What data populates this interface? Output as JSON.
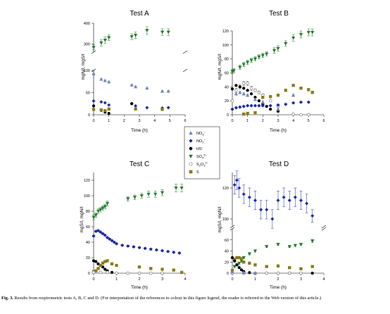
{
  "colors": {
    "nitrate": "#6f86b5",
    "nitrite": "#1b2aa8",
    "sulfide": "#000000",
    "sulfate": "#1d7a25",
    "thiosulfate": "#ffffff",
    "sulfur": "#8a7a1a"
  },
  "legend": {
    "items": [
      {
        "key": "nitrate",
        "marker": "triangle-up",
        "label": "NO",
        "sub": "3",
        "sup": "−"
      },
      {
        "key": "nitrite",
        "marker": "diamond",
        "label": "NO",
        "sub": "2",
        "sup": "−"
      },
      {
        "key": "sulfide",
        "marker": "circle",
        "label": "HS",
        "sub": "",
        "sup": "−"
      },
      {
        "key": "sulfate",
        "marker": "triangle-down",
        "label": "SO",
        "sub": "4",
        "sup": "2−"
      },
      {
        "key": "thiosulfate",
        "marker": "circle-open",
        "label": "S",
        "sub": "2",
        "mid": "O",
        "sub2": "3",
        "sup": "2−"
      },
      {
        "key": "sulfur",
        "marker": "square",
        "label": "S",
        "sub": "",
        "sup": ""
      }
    ]
  },
  "caption": {
    "label": "Fig. 3.",
    "text": "Results from respirometric tests A, B, C and D. (For interpretation of the references to colour in this figure legend, the reader is referred to the Web version of this article.)"
  },
  "chart_data": [
    {
      "type": "scatter",
      "title": "Test A",
      "xlabel": "Time (h)",
      "ylabel": "mgN/l, mgS/l",
      "xlim": [
        0,
        6
      ],
      "xticks": [
        0,
        1,
        2,
        3,
        4,
        5,
        6
      ],
      "broken_axis": true,
      "upper_ylim": [
        260,
        400
      ],
      "upper_yticks": [
        300,
        400
      ],
      "lower_ylim": [
        0,
        100
      ],
      "lower_yticks": [
        0,
        50,
        100
      ],
      "series": [
        {
          "key": "sulfate",
          "x": [
            0,
            0.5,
            0.75,
            1,
            2.5,
            2.75,
            3.5,
            4.5,
            4.9
          ],
          "y": [
            283,
            305,
            318,
            330,
            335,
            342,
            365,
            357,
            357
          ],
          "err": [
            12,
            15,
            15,
            14,
            14,
            16,
            18,
            16,
            16
          ]
        },
        {
          "key": "nitrate",
          "x": [
            0,
            0.5,
            0.75,
            1,
            2.5,
            2.75,
            3.5,
            4.5,
            4.9
          ],
          "y": [
            93,
            80,
            77,
            74,
            67,
            63,
            60,
            53,
            53
          ],
          "err": [
            4,
            2,
            2,
            2,
            2,
            2,
            2,
            2,
            2
          ]
        },
        {
          "key": "nitrite",
          "x": [
            0,
            0.5,
            0.75,
            1,
            2.5,
            2.75,
            3.5,
            4.5,
            4.9
          ],
          "y": [
            31,
            29,
            27,
            22,
            25,
            20,
            16,
            15,
            16
          ],
          "err": [
            0,
            0,
            0,
            0,
            0,
            0,
            0,
            0,
            0
          ]
        },
        {
          "key": "sulfide",
          "x": [
            0,
            0.5,
            0.75,
            1,
            2.5
          ],
          "y": [
            20,
            10,
            6,
            3,
            25
          ],
          "err": [
            0,
            0,
            0,
            0,
            0
          ]
        },
        {
          "key": "sulfur",
          "x": [
            0,
            0.5,
            0.75,
            1,
            2.75,
            4.5
          ],
          "y": [
            12,
            11,
            9,
            13,
            13,
            12
          ],
          "err": [
            0,
            0,
            0,
            0,
            0,
            0
          ]
        }
      ]
    },
    {
      "type": "scatter",
      "title": "Test B",
      "xlabel": "Time (h)",
      "ylabel": "mgN/l, mgS/l",
      "xlim": [
        0,
        6
      ],
      "xticks": [
        0,
        1,
        2,
        3,
        4,
        5,
        6
      ],
      "ylim": [
        0,
        120
      ],
      "yticks": [
        0,
        20,
        40,
        60,
        80,
        100,
        120
      ],
      "series": [
        {
          "key": "sulfate",
          "x": [
            0,
            0.1,
            0.5,
            0.75,
            1,
            1.25,
            1.5,
            1.75,
            2,
            2.25,
            2.75,
            3,
            3.5,
            4,
            4.5,
            5,
            5.25
          ],
          "y": [
            62,
            63,
            68,
            72,
            75,
            78,
            80,
            83,
            85,
            87,
            92,
            95,
            102,
            110,
            115,
            118,
            118
          ],
          "err": [
            3,
            3,
            3,
            3,
            3,
            3,
            3,
            3,
            3,
            3,
            4,
            4,
            4,
            5,
            5,
            5,
            5
          ]
        },
        {
          "key": "thiosulfate",
          "x": [
            0,
            0.25,
            0.5,
            0.75,
            1,
            1.25,
            1.5,
            1.75,
            2,
            2.5,
            3,
            4,
            4.5,
            5
          ],
          "y": [
            20,
            35,
            40,
            45,
            45,
            38,
            35,
            32,
            28,
            20,
            12,
            1,
            0,
            0
          ],
          "err": [
            0,
            3,
            3,
            3,
            3,
            3,
            2,
            2,
            2,
            0,
            0,
            0,
            0,
            0
          ]
        },
        {
          "key": "sulfide",
          "x": [
            0,
            0.25,
            0.5,
            0.75,
            1,
            1.25,
            1.5,
            1.75,
            2,
            2.25,
            2.5,
            3
          ],
          "y": [
            37,
            42,
            40,
            38,
            35,
            30,
            25,
            20,
            15,
            12,
            8,
            5
          ],
          "err": [
            0,
            0,
            0,
            0,
            0,
            0,
            0,
            0,
            0,
            0,
            0,
            0
          ]
        },
        {
          "key": "nitrate",
          "x": [
            0.25,
            0.5,
            0.75,
            1,
            1.5,
            2,
            3,
            4
          ],
          "y": [
            30,
            32,
            30,
            28,
            22,
            18,
            8,
            28
          ],
          "err": [
            2,
            2,
            2,
            2,
            2,
            2,
            2,
            2
          ]
        },
        {
          "key": "nitrite",
          "x": [
            0,
            0.25,
            0.5,
            0.75,
            1,
            1.25,
            1.5,
            1.75,
            2,
            2.5,
            3,
            3.5,
            4,
            4.5,
            5
          ],
          "y": [
            8,
            10,
            11,
            12,
            13,
            13,
            13,
            13,
            13,
            13,
            14,
            15,
            17,
            18,
            18
          ],
          "err": [
            1,
            1,
            1,
            1,
            1,
            1,
            1,
            1,
            1,
            1,
            1,
            1,
            1,
            1,
            1
          ]
        },
        {
          "key": "sulfur",
          "x": [
            0.75,
            1,
            1.5,
            2,
            2.5,
            3,
            3.5,
            4,
            4.5,
            5,
            5.25
          ],
          "y": [
            1,
            2,
            3,
            25,
            26,
            28,
            35,
            42,
            38,
            36,
            32
          ],
          "err": [
            0,
            0,
            0,
            0,
            0,
            0,
            0,
            0,
            0,
            0,
            0
          ]
        }
      ]
    },
    {
      "type": "scatter",
      "title": "Test C",
      "xlabel": "Time (h)",
      "ylabel": "mgS/l, mgN/l",
      "xlim": [
        0,
        4
      ],
      "xticks": [
        0,
        1,
        2,
        3,
        4
      ],
      "ylim": [
        0,
        130
      ],
      "yticks": [
        0,
        20,
        40,
        60,
        80,
        100,
        120
      ],
      "series": [
        {
          "key": "sulfate",
          "x": [
            0,
            0.1,
            0.2,
            0.3,
            0.4,
            0.5,
            0.6,
            1.5,
            1.8,
            2.1,
            2.4,
            2.7,
            3,
            3.6,
            3.85
          ],
          "y": [
            72,
            75,
            80,
            82,
            84,
            86,
            90,
            96,
            98,
            100,
            102,
            102,
            104,
            110,
            110
          ],
          "err": [
            3,
            3,
            3,
            3,
            3,
            3,
            3,
            3,
            3,
            3,
            4,
            4,
            4,
            5,
            5
          ]
        },
        {
          "key": "nitrite",
          "x": [
            0,
            0.1,
            0.2,
            0.3,
            0.4,
            0.5,
            0.6,
            0.7,
            0.8,
            0.9,
            1,
            1.25,
            1.5,
            1.75,
            2,
            2.25,
            2.5,
            2.75,
            3,
            3.25,
            3.5,
            3.75
          ],
          "y": [
            48,
            54,
            55,
            53,
            51,
            49,
            46,
            44,
            42,
            40,
            38,
            36,
            35,
            34,
            33,
            32,
            31,
            30,
            29,
            28,
            27,
            26
          ],
          "err": [
            1,
            1,
            1,
            1,
            1,
            1,
            1,
            1,
            1,
            1,
            1,
            1,
            1,
            1,
            1,
            1,
            1,
            1,
            1,
            1,
            1,
            1
          ]
        },
        {
          "key": "sulfide",
          "x": [
            0,
            0.1,
            0.2,
            0.3,
            0.4,
            0.5,
            0.6,
            0.8
          ],
          "y": [
            16,
            15,
            12,
            10,
            8,
            5,
            3,
            1
          ],
          "err": [
            0,
            0,
            0,
            0,
            0,
            0,
            0,
            0
          ]
        },
        {
          "key": "sulfur",
          "x": [
            0,
            0.1,
            0.2,
            0.3,
            0.4,
            0.5,
            0.6,
            0.8,
            1,
            2,
            2.5,
            3,
            3.5,
            3.85
          ],
          "y": [
            2,
            3,
            6,
            10,
            13,
            15,
            16,
            12,
            10,
            8,
            6,
            5,
            4,
            1
          ],
          "err": [
            0,
            0,
            0,
            0,
            0,
            0,
            0,
            0,
            0,
            0,
            0,
            0,
            0,
            0
          ]
        },
        {
          "key": "thiosulfate",
          "x": [
            0,
            0.3,
            0.6,
            1,
            1.5,
            2,
            2.5,
            3
          ],
          "y": [
            1,
            1,
            1,
            0,
            0,
            0,
            0,
            0
          ],
          "err": [
            0,
            0,
            0,
            0,
            0,
            0,
            0,
            0
          ]
        }
      ]
    },
    {
      "type": "scatter",
      "title": "Test D",
      "xlabel": "Time (h)",
      "ylabel": "mgS/l, mgN/l",
      "xlim": [
        0,
        4
      ],
      "xticks": [
        0,
        1,
        2,
        3,
        4
      ],
      "broken_axis": true,
      "upper_ylim": [
        95,
        130
      ],
      "upper_yticks": [
        100,
        120
      ],
      "lower_ylim": [
        0,
        80
      ],
      "lower_yticks": [
        0,
        20,
        40,
        60
      ],
      "series": [
        {
          "key": "nitrite",
          "x": [
            0.1,
            0.2,
            0.3,
            0.5,
            0.75,
            1,
            1.25,
            1.5,
            1.75,
            2,
            2.25,
            2.5,
            2.75,
            3,
            3.25,
            3.5
          ],
          "y": [
            122,
            125,
            120,
            116,
            114,
            112,
            106,
            106,
            100,
            112,
            114,
            112,
            114,
            112,
            110,
            102
          ],
          "err": [
            6,
            6,
            6,
            6,
            6,
            6,
            6,
            6,
            6,
            6,
            6,
            6,
            6,
            6,
            6,
            4
          ]
        },
        {
          "key": "sulfate",
          "x": [
            0.1,
            0.2,
            0.3,
            0.4,
            0.5,
            0.75,
            1,
            1.5,
            2,
            2.5,
            2.75,
            3,
            3.5
          ],
          "y": [
            12,
            15,
            18,
            22,
            28,
            35,
            40,
            48,
            52,
            48,
            50,
            52,
            58
          ],
          "err": [
            2,
            2,
            2,
            2,
            2,
            2,
            2,
            2,
            2,
            2,
            2,
            2,
            3
          ]
        },
        {
          "key": "sulfur",
          "x": [
            0,
            0.1,
            0.2,
            0.3,
            0.4,
            0.5,
            0.75,
            1,
            1.5,
            2,
            2.5,
            3,
            3.5
          ],
          "y": [
            5,
            25,
            28,
            28,
            26,
            20,
            18,
            15,
            12,
            13,
            10,
            8,
            12
          ],
          "err": [
            0,
            0,
            0,
            0,
            0,
            0,
            0,
            0,
            0,
            0,
            0,
            0,
            0
          ]
        },
        {
          "key": "sulfide",
          "x": [
            0,
            0.1,
            0.2,
            0.3,
            0.4,
            0.5,
            0.75,
            1,
            1.5,
            2,
            2.5,
            3,
            3.5
          ],
          "y": [
            28,
            22,
            15,
            10,
            6,
            3,
            1,
            0,
            0,
            0,
            0,
            0,
            0
          ],
          "err": [
            0,
            0,
            0,
            0,
            0,
            0,
            0,
            0,
            0,
            0,
            0,
            0,
            0
          ]
        },
        {
          "key": "thiosulfate",
          "x": [
            0,
            0.5,
            1,
            1.5,
            2,
            2.5,
            3
          ],
          "y": [
            0,
            0,
            0,
            0,
            0,
            0,
            0
          ],
          "err": [
            0,
            0,
            0,
            0,
            0,
            0,
            0
          ]
        },
        {
          "key": "nitrate",
          "x": [
            0,
            0.5,
            1
          ],
          "y": [
            2,
            1,
            0
          ],
          "err": [
            0,
            0,
            0
          ]
        }
      ]
    }
  ]
}
